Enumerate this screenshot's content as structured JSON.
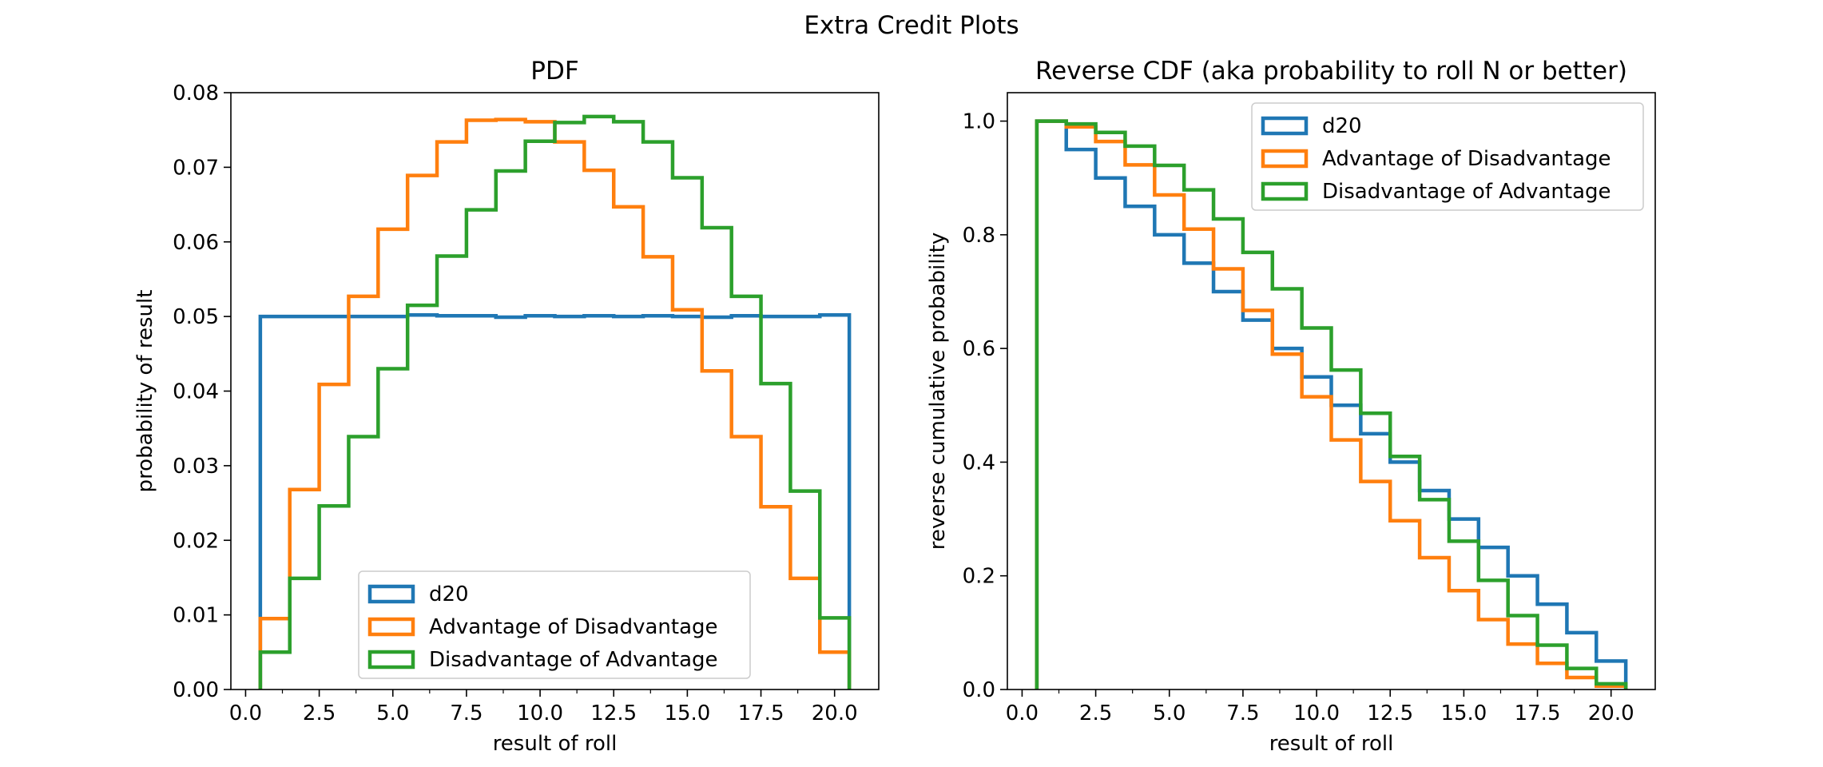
{
  "figure_title": "Extra Credit Plots",
  "colors": {
    "d20": "#1f77b4",
    "advdis": "#ff7f0e",
    "disadv": "#2ca02c"
  },
  "chart_data": [
    {
      "type": "step",
      "title": "PDF",
      "xlabel": "result of roll",
      "ylabel": "probability of result",
      "xlim": [
        -0.5,
        21.5
      ],
      "ylim": [
        0,
        0.08
      ],
      "xticks": [
        "0.0",
        "2.5",
        "5.0",
        "7.5",
        "10.0",
        "12.5",
        "15.0",
        "17.5",
        "20.0"
      ],
      "yticks": [
        "0.00",
        "0.01",
        "0.02",
        "0.03",
        "0.04",
        "0.05",
        "0.06",
        "0.07",
        "0.08"
      ],
      "grid": false,
      "legend_position": "lower-center",
      "bin_edges": [
        0.5,
        1.5,
        2.5,
        3.5,
        4.5,
        5.5,
        6.5,
        7.5,
        8.5,
        9.5,
        10.5,
        11.5,
        12.5,
        13.5,
        14.5,
        15.5,
        16.5,
        17.5,
        18.5,
        19.5,
        20.5
      ],
      "series": [
        {
          "name": "d20",
          "color": "#1f77b4",
          "values": [
            0.05,
            0.05,
            0.05,
            0.05,
            0.05,
            0.0502,
            0.0501,
            0.0501,
            0.0499,
            0.0501,
            0.05,
            0.0501,
            0.05,
            0.0501,
            0.05,
            0.0499,
            0.0501,
            0.05,
            0.05,
            0.0502
          ]
        },
        {
          "name": "Advantage of Disadvantage",
          "color": "#ff7f0e",
          "values": [
            0.0095,
            0.0268,
            0.0409,
            0.0527,
            0.0617,
            0.0689,
            0.0734,
            0.0763,
            0.0764,
            0.0761,
            0.0734,
            0.0696,
            0.0647,
            0.058,
            0.0509,
            0.0427,
            0.0339,
            0.0245,
            0.0149,
            0.005
          ]
        },
        {
          "name": "Disadvantage of Advantage",
          "color": "#2ca02c",
          "values": [
            0.005,
            0.0149,
            0.0246,
            0.0339,
            0.043,
            0.0515,
            0.0581,
            0.0643,
            0.0695,
            0.0735,
            0.076,
            0.0768,
            0.0761,
            0.0734,
            0.0686,
            0.0619,
            0.0527,
            0.041,
            0.0266,
            0.0096
          ]
        }
      ]
    },
    {
      "type": "step",
      "title": "Reverse CDF (aka probability to roll N or better)",
      "xlabel": "result of roll",
      "ylabel": "reverse cumulative probability",
      "xlim": [
        -0.5,
        21.5
      ],
      "ylim": [
        0,
        1.05
      ],
      "xticks": [
        "0.0",
        "2.5",
        "5.0",
        "7.5",
        "10.0",
        "12.5",
        "15.0",
        "17.5",
        "20.0"
      ],
      "yticks": [
        "0.0",
        "0.2",
        "0.4",
        "0.6",
        "0.8",
        "1.0"
      ],
      "grid": false,
      "legend_position": "upper-right",
      "bin_edges": [
        0.5,
        1.5,
        2.5,
        3.5,
        4.5,
        5.5,
        6.5,
        7.5,
        8.5,
        9.5,
        10.5,
        11.5,
        12.5,
        13.5,
        14.5,
        15.5,
        16.5,
        17.5,
        18.5,
        19.5,
        20.5
      ],
      "series": [
        {
          "name": "d20",
          "color": "#1f77b4",
          "values": [
            1.0,
            0.95,
            0.9,
            0.85,
            0.8,
            0.75,
            0.7,
            0.65,
            0.6,
            0.55,
            0.5,
            0.45,
            0.4,
            0.35,
            0.3,
            0.25,
            0.2,
            0.15,
            0.1,
            0.05
          ]
        },
        {
          "name": "Advantage of Disadvantage",
          "color": "#ff7f0e",
          "values": [
            1.0,
            0.99,
            0.964,
            0.923,
            0.87,
            0.81,
            0.74,
            0.667,
            0.59,
            0.515,
            0.439,
            0.366,
            0.297,
            0.232,
            0.174,
            0.123,
            0.08,
            0.046,
            0.021,
            0.006
          ]
        },
        {
          "name": "Disadvantage of Advantage",
          "color": "#2ca02c",
          "values": [
            1.0,
            0.995,
            0.98,
            0.956,
            0.922,
            0.879,
            0.828,
            0.769,
            0.705,
            0.636,
            0.562,
            0.486,
            0.41,
            0.334,
            0.261,
            0.192,
            0.13,
            0.078,
            0.037,
            0.01
          ]
        }
      ]
    }
  ]
}
